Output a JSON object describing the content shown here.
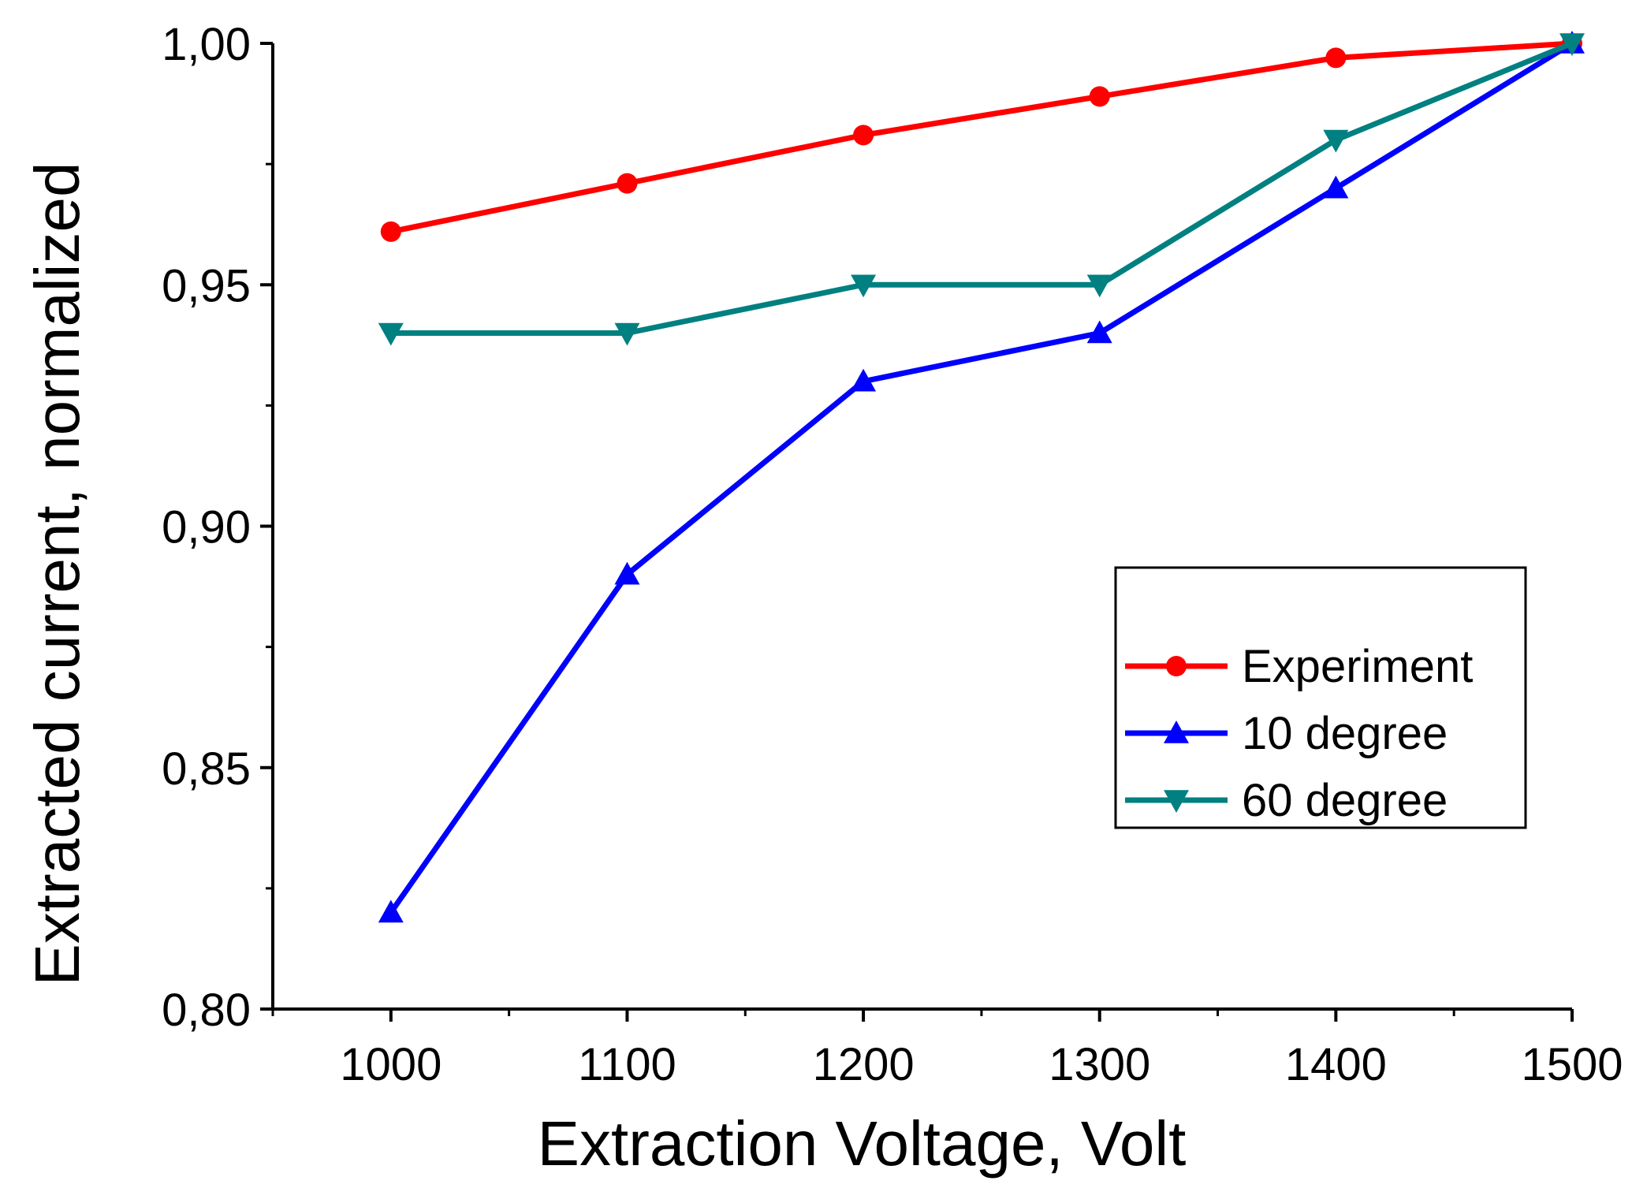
{
  "chart_data": {
    "type": "line",
    "xlabel": "Extraction Voltage, Volt",
    "ylabel": "Extracted current, normalized",
    "xlim": [
      950,
      1500
    ],
    "ylim": [
      0.8,
      1.0
    ],
    "x_ticks": [
      1000,
      1100,
      1200,
      1300,
      1400,
      1500
    ],
    "x_tick_labels": [
      "1000",
      "1100",
      "1200",
      "1300",
      "1400",
      "1500"
    ],
    "y_ticks": [
      0.8,
      0.85,
      0.9,
      0.95,
      1.0
    ],
    "y_tick_labels": [
      "0,80",
      "0,85",
      "0,90",
      "0,95",
      "1,00"
    ],
    "grid": false,
    "legend_position": "right",
    "series": [
      {
        "name": "Experiment",
        "color": "#ff0000",
        "marker": "circle",
        "x": [
          1000,
          1100,
          1200,
          1300,
          1400,
          1500
        ],
        "y": [
          0.961,
          0.971,
          0.981,
          0.989,
          0.997,
          1.0
        ]
      },
      {
        "name": "10 degree",
        "color": "#0000ff",
        "marker": "triangle-up",
        "x": [
          1000,
          1100,
          1200,
          1300,
          1400,
          1500
        ],
        "y": [
          0.82,
          0.89,
          0.93,
          0.94,
          0.97,
          1.0
        ]
      },
      {
        "name": "60 degree",
        "color": "#008080",
        "marker": "triangle-down",
        "x": [
          1000,
          1100,
          1200,
          1300,
          1400,
          1500
        ],
        "y": [
          0.94,
          0.94,
          0.95,
          0.95,
          0.98,
          1.0
        ]
      }
    ]
  }
}
